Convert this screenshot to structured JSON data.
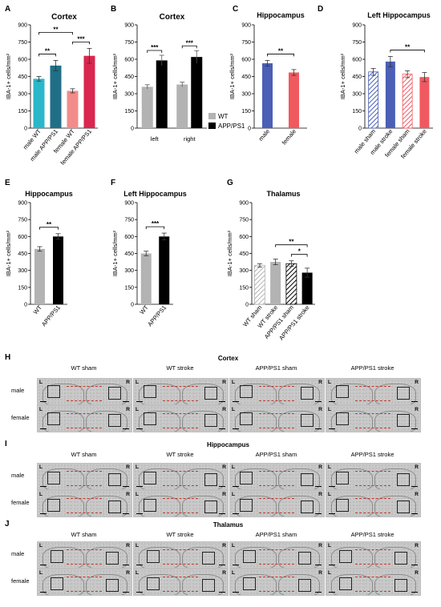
{
  "panels_letters": [
    "A",
    "B",
    "C",
    "D",
    "E",
    "F",
    "G",
    "H",
    "I",
    "J"
  ],
  "chart_data": [
    {
      "id": "A",
      "type": "bar",
      "title": "Cortex",
      "ylabel": "IBA-1+ cells/mm²",
      "ylim": [
        0,
        900
      ],
      "yticks": [
        0,
        150,
        300,
        450,
        600,
        750,
        900
      ],
      "categories": [
        "male WT",
        "male APP/PS1",
        "female WT",
        "female APP/PS1"
      ],
      "values": [
        430,
        545,
        325,
        630
      ],
      "errors": [
        20,
        45,
        18,
        65
      ],
      "colors": [
        "#2ab7c9",
        "#1f6f87",
        "#f28c8c",
        "#d9274f"
      ],
      "significance": [
        {
          "label": "**",
          "from": 0,
          "to": 1
        },
        {
          "label": "***",
          "from": 2,
          "to": 3
        },
        {
          "label": "**",
          "from": 0,
          "to": 2
        }
      ]
    },
    {
      "id": "B",
      "type": "bar",
      "title": "Cortex",
      "ylabel": "IBA-1+ cells/mm²",
      "ylim": [
        0,
        900
      ],
      "yticks": [
        0,
        150,
        300,
        450,
        600,
        750,
        900
      ],
      "categories": [
        "left",
        "right"
      ],
      "series": [
        {
          "name": "WT",
          "values": [
            360,
            380
          ],
          "errors": [
            18,
            20
          ],
          "color": "#b3b3b3"
        },
        {
          "name": "APP/PS1",
          "values": [
            590,
            620
          ],
          "errors": [
            45,
            55
          ],
          "color": "#000000"
        }
      ],
      "significance": [
        {
          "label": "***",
          "group": 0
        },
        {
          "label": "***",
          "group": 1
        }
      ],
      "legend": "right"
    },
    {
      "id": "C",
      "type": "bar",
      "title": "Hippocampus",
      "ylabel": "IBA-1+ cells/mm²",
      "ylim": [
        0,
        900
      ],
      "yticks": [
        0,
        150,
        300,
        450,
        600,
        750,
        900
      ],
      "categories": [
        "male",
        "female"
      ],
      "values": [
        565,
        485
      ],
      "errors": [
        25,
        25
      ],
      "colors": [
        "#4a5fb5",
        "#f0595f"
      ],
      "significance": [
        {
          "label": "**",
          "from": 0,
          "to": 1
        }
      ]
    },
    {
      "id": "D",
      "type": "bar",
      "title": "Left Hippocampus",
      "ylabel": "IBA-1+ cells/mm²",
      "ylim": [
        0,
        900
      ],
      "yticks": [
        0,
        150,
        300,
        450,
        600,
        750,
        900
      ],
      "categories": [
        "male sham",
        "male stroke",
        "female sham",
        "female stroke"
      ],
      "values": [
        490,
        580,
        470,
        445
      ],
      "errors": [
        30,
        45,
        30,
        40
      ],
      "colors": [
        "#4a5fb5",
        "#4a5fb5",
        "#f0595f",
        "#f0595f"
      ],
      "hatched": [
        true,
        false,
        true,
        false
      ],
      "significance": [
        {
          "label": "**",
          "from": 1,
          "to": 3
        }
      ]
    },
    {
      "id": "E",
      "type": "bar",
      "title": "Hippocampus",
      "ylabel": "IBA-1+ cells/mm²",
      "ylim": [
        0,
        900
      ],
      "yticks": [
        0,
        150,
        300,
        450,
        600,
        750,
        900
      ],
      "categories": [
        "WT",
        "APP/PS1"
      ],
      "values": [
        490,
        600
      ],
      "errors": [
        20,
        25
      ],
      "colors": [
        "#b3b3b3",
        "#000000"
      ],
      "significance": [
        {
          "label": "**",
          "from": 0,
          "to": 1
        }
      ]
    },
    {
      "id": "F",
      "type": "bar",
      "title": "Left Hippocampus",
      "ylabel": "IBA-1+ cells/mm²",
      "ylim": [
        0,
        900
      ],
      "yticks": [
        0,
        150,
        300,
        450,
        600,
        750,
        900
      ],
      "categories": [
        "WT",
        "APP/PS1"
      ],
      "values": [
        450,
        600
      ],
      "errors": [
        20,
        30
      ],
      "colors": [
        "#b3b3b3",
        "#000000"
      ],
      "significance": [
        {
          "label": "***",
          "from": 0,
          "to": 1
        }
      ]
    },
    {
      "id": "G",
      "type": "bar",
      "title": "Thalamus",
      "ylabel": "IBA-1+ cells/mm²",
      "ylim": [
        0,
        900
      ],
      "yticks": [
        0,
        150,
        300,
        450,
        600,
        750,
        900
      ],
      "categories": [
        "WT sham",
        "WT stroke",
        "APP/PS1 sham",
        "APP/PS1 stroke"
      ],
      "values": [
        345,
        375,
        360,
        280
      ],
      "errors": [
        15,
        25,
        25,
        40
      ],
      "colors": [
        "#b3b3b3",
        "#b3b3b3",
        "#000000",
        "#000000"
      ],
      "hatched": [
        true,
        false,
        true,
        false
      ],
      "significance": [
        {
          "label": "*",
          "from": 2,
          "to": 3
        },
        {
          "label": "**",
          "from": 1,
          "to": 3
        }
      ]
    }
  ],
  "micrographs": {
    "column_labels": [
      "WT sham",
      "WT stroke",
      "APP/PS1 sham",
      "APP/PS1 stroke"
    ],
    "row_labels": [
      "male",
      "female"
    ],
    "side_left": "L",
    "side_right": "R",
    "sections": [
      {
        "letter": "H",
        "title": "Cortex"
      },
      {
        "letter": "I",
        "title": "Hippocampus"
      },
      {
        "letter": "J",
        "title": "Thalamus"
      }
    ]
  }
}
